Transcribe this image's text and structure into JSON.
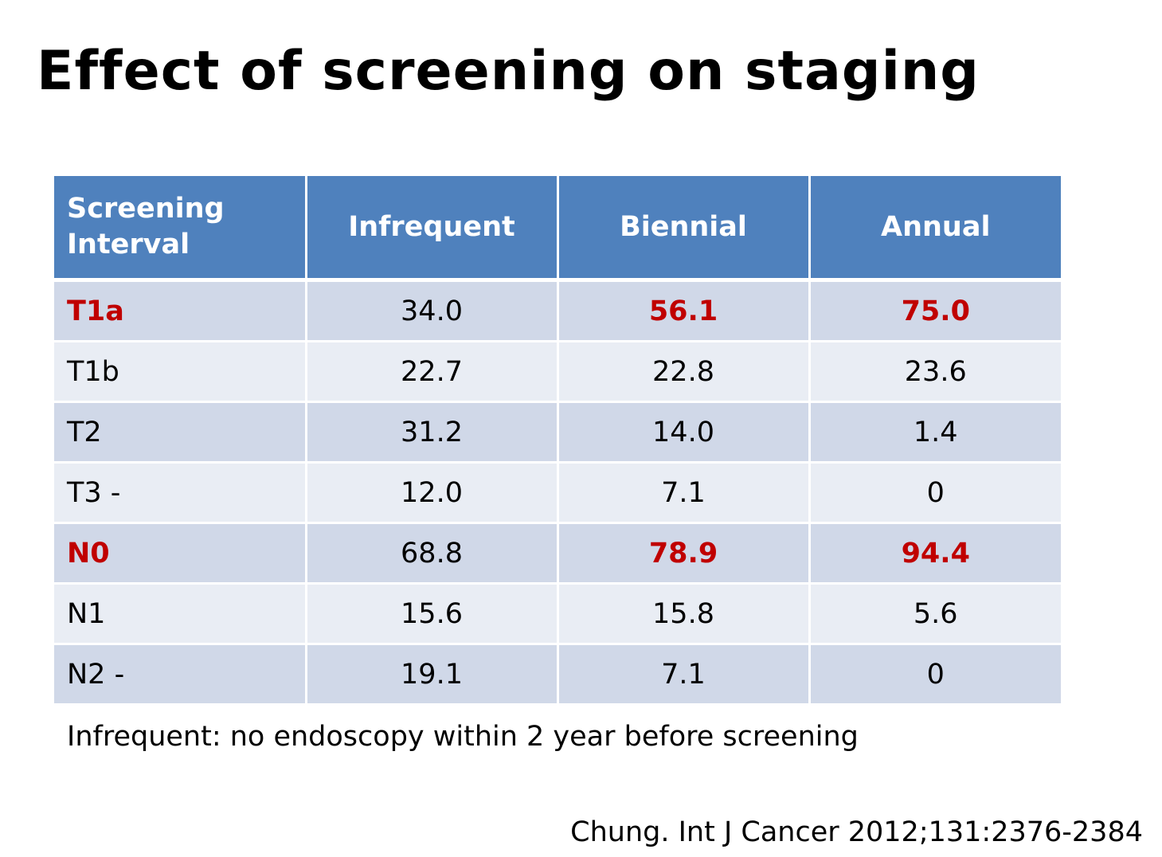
{
  "title": "Effect of screening on staging",
  "table": {
    "header_line1": "Screening",
    "header_line2": "Interval",
    "columns": [
      "Infrequent",
      "Biennial",
      "Annual"
    ],
    "rows": [
      {
        "label": "T1a",
        "values": [
          "34.0",
          "56.1",
          "75.0"
        ],
        "highlight": [
          true,
          false,
          true,
          true
        ]
      },
      {
        "label": "T1b",
        "values": [
          "22.7",
          "22.8",
          "23.6"
        ],
        "highlight": [
          false,
          false,
          false,
          false
        ]
      },
      {
        "label": "T2",
        "values": [
          "31.2",
          "14.0",
          "1.4"
        ],
        "highlight": [
          false,
          false,
          false,
          false
        ]
      },
      {
        "label": "T3 -",
        "values": [
          "12.0",
          "7.1",
          "0"
        ],
        "highlight": [
          false,
          false,
          false,
          false
        ]
      },
      {
        "label": "N0",
        "values": [
          "68.8",
          "78.9",
          "94.4"
        ],
        "highlight": [
          true,
          false,
          true,
          true
        ]
      },
      {
        "label": "N1",
        "values": [
          "15.6",
          "15.8",
          "5.6"
        ],
        "highlight": [
          false,
          false,
          false,
          false
        ]
      },
      {
        "label": "N2 -",
        "values": [
          "19.1",
          "7.1",
          "0"
        ],
        "highlight": [
          false,
          false,
          false,
          false
        ]
      }
    ]
  },
  "footnote": "Infrequent: no endoscopy within 2 year before screening",
  "citation": "Chung. Int J Cancer 2012;131:2376-2384",
  "colors": {
    "header_bg": "#4f81bd",
    "row_dark": "#d0d8e8",
    "row_light": "#e9edf4",
    "highlight_text": "#c00000"
  }
}
